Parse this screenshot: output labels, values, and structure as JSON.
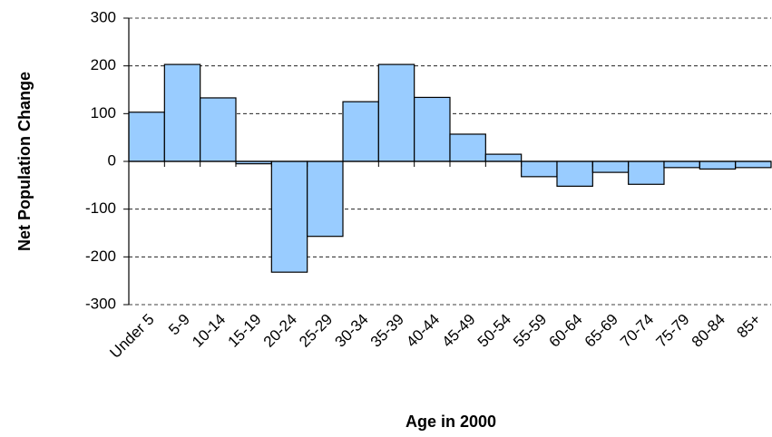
{
  "chart_data": {
    "type": "bar",
    "x_label": "Age in 2000",
    "y_label": "Net Population Change",
    "categories": [
      "Under 5",
      "5-9",
      "10-14",
      "15-19",
      "20-24",
      "25-29",
      "30-34",
      "35-39",
      "40-44",
      "45-49",
      "50-54",
      "55-59",
      "60-64",
      "65-69",
      "70-74",
      "75-79",
      "80-84",
      "85+"
    ],
    "values": [
      103,
      203,
      133,
      -5,
      -232,
      -157,
      125,
      203,
      134,
      57,
      15,
      -32,
      -52,
      -23,
      -48,
      -13,
      -16,
      -13
    ],
    "color": "#99ccff",
    "ylim": [
      -300,
      300
    ],
    "yticks": [
      -300,
      -200,
      -100,
      0,
      100,
      200,
      300
    ],
    "grid": true
  }
}
